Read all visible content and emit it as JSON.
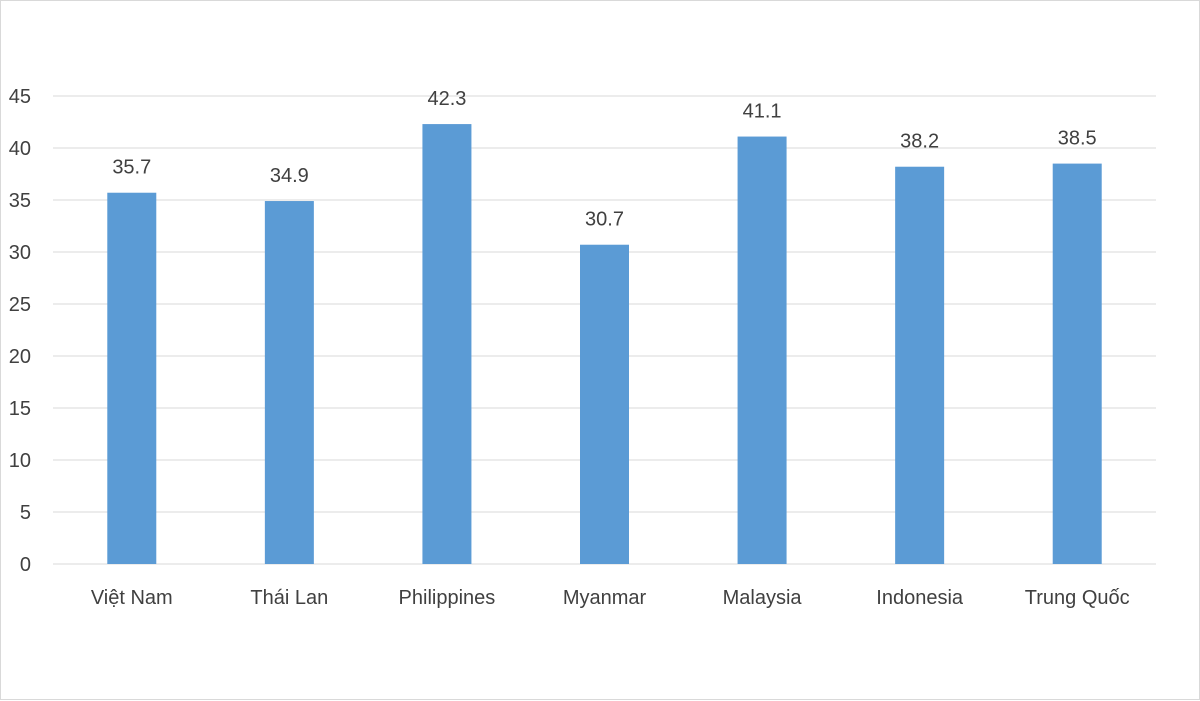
{
  "chart_data": {
    "type": "bar",
    "title": "",
    "xlabel": "",
    "ylabel": "",
    "categories": [
      "Việt Nam",
      "Thái Lan",
      "Philippines",
      "Myanmar",
      "Malaysia",
      "Indonesia",
      "Trung Quốc"
    ],
    "values": [
      35.7,
      34.9,
      42.3,
      30.7,
      41.1,
      38.2,
      38.5
    ],
    "value_labels": [
      "35.7",
      "34.9",
      "42.3",
      "30.7",
      "41.1",
      "38.2",
      "38.5"
    ],
    "ylim": [
      0,
      45
    ],
    "yticks": [
      0,
      5,
      10,
      15,
      20,
      25,
      30,
      35,
      40,
      45
    ],
    "ytick_labels": [
      "0",
      "5",
      "10",
      "15",
      "20",
      "25",
      "30",
      "35",
      "40",
      "45"
    ],
    "grid": true,
    "legend": "none",
    "bar_color": "#5b9bd5",
    "grid_color": "#d9d9d9",
    "text_color": "#404040"
  }
}
